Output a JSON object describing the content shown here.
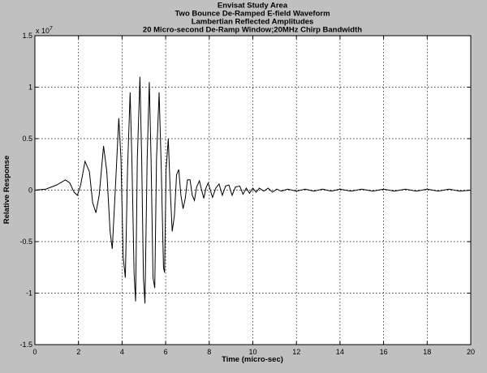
{
  "chart_data": {
    "type": "line",
    "title_lines": [
      "Envisat Study Area",
      "Two Bounce De-Ramped E-field Waveform",
      "Lambertian Reflected Amplitudes",
      "20 Micro-second De-Ramp Window;20MHz Chirp Bandwidth"
    ],
    "xlabel": "Time (micro-sec)",
    "ylabel": "Relative Response",
    "xlim": [
      0,
      20
    ],
    "ylim": [
      -1.5,
      1.5
    ],
    "y_multiplier": {
      "base": "x 10",
      "exponent": "7"
    },
    "x_ticks": [
      {
        "value": 0,
        "label": "0"
      },
      {
        "value": 2,
        "label": "2"
      },
      {
        "value": 4,
        "label": "4"
      },
      {
        "value": 6,
        "label": "6"
      },
      {
        "value": 8,
        "label": "8"
      },
      {
        "value": 10,
        "label": "10"
      },
      {
        "value": 12,
        "label": "12"
      },
      {
        "value": 14,
        "label": "14"
      },
      {
        "value": 16,
        "label": "16"
      },
      {
        "value": 18,
        "label": "18"
      },
      {
        "value": 20,
        "label": "20"
      }
    ],
    "y_ticks": [
      {
        "value": 1.5,
        "label": "1.5"
      },
      {
        "value": 1,
        "label": "1"
      },
      {
        "value": 0.5,
        "label": "0.5"
      },
      {
        "value": 0,
        "label": "0"
      },
      {
        "value": -0.5,
        "label": "-0.5"
      },
      {
        "value": -1,
        "label": "-1"
      },
      {
        "value": -1.5,
        "label": "-1.5"
      }
    ],
    "grid": true,
    "series": [
      {
        "color": "#000000",
        "points": [
          [
            0.0,
            0.0
          ],
          [
            0.5,
            0.01
          ],
          [
            1.0,
            0.05
          ],
          [
            1.4,
            0.1
          ],
          [
            1.6,
            0.07
          ],
          [
            1.8,
            -0.02
          ],
          [
            1.95,
            -0.05
          ],
          [
            2.1,
            0.05
          ],
          [
            2.3,
            0.28
          ],
          [
            2.5,
            0.18
          ],
          [
            2.65,
            -0.12
          ],
          [
            2.8,
            -0.22
          ],
          [
            2.95,
            -0.05
          ],
          [
            3.15,
            0.43
          ],
          [
            3.3,
            0.18
          ],
          [
            3.45,
            -0.4
          ],
          [
            3.55,
            -0.57
          ],
          [
            3.7,
            0.05
          ],
          [
            3.85,
            0.7
          ],
          [
            3.95,
            0.3
          ],
          [
            4.05,
            -0.65
          ],
          [
            4.15,
            -0.85
          ],
          [
            4.25,
            0.2
          ],
          [
            4.37,
            0.95
          ],
          [
            4.45,
            0.3
          ],
          [
            4.55,
            -0.8
          ],
          [
            4.62,
            -1.08
          ],
          [
            4.7,
            0.3
          ],
          [
            4.82,
            1.1
          ],
          [
            4.9,
            0.3
          ],
          [
            4.98,
            -0.85
          ],
          [
            5.05,
            -1.1
          ],
          [
            5.15,
            0.3
          ],
          [
            5.25,
            1.05
          ],
          [
            5.33,
            0.3
          ],
          [
            5.42,
            -0.85
          ],
          [
            5.5,
            -0.95
          ],
          [
            5.58,
            0.3
          ],
          [
            5.7,
            0.95
          ],
          [
            5.8,
            0.2
          ],
          [
            5.9,
            -0.75
          ],
          [
            5.95,
            -0.8
          ],
          [
            6.02,
            0.2
          ],
          [
            6.12,
            0.5
          ],
          [
            6.2,
            0.05
          ],
          [
            6.3,
            -0.4
          ],
          [
            6.4,
            -0.25
          ],
          [
            6.5,
            0.15
          ],
          [
            6.6,
            0.2
          ],
          [
            6.7,
            -0.05
          ],
          [
            6.8,
            -0.18
          ],
          [
            6.9,
            -0.08
          ],
          [
            7.0,
            0.1
          ],
          [
            7.12,
            0.1
          ],
          [
            7.22,
            -0.05
          ],
          [
            7.32,
            -0.1
          ],
          [
            7.42,
            0.03
          ],
          [
            7.55,
            0.09
          ],
          [
            7.65,
            0.0
          ],
          [
            7.75,
            -0.08
          ],
          [
            7.85,
            0.02
          ],
          [
            7.95,
            0.07
          ],
          [
            8.05,
            0.0
          ],
          [
            8.15,
            -0.07
          ],
          [
            8.3,
            0.02
          ],
          [
            8.45,
            0.06
          ],
          [
            8.6,
            -0.05
          ],
          [
            8.75,
            0.04
          ],
          [
            8.9,
            0.05
          ],
          [
            9.05,
            -0.05
          ],
          [
            9.2,
            0.03
          ],
          [
            9.4,
            0.04
          ],
          [
            9.55,
            -0.04
          ],
          [
            9.7,
            0.02
          ],
          [
            9.85,
            -0.03
          ],
          [
            10.0,
            0.02
          ],
          [
            10.15,
            -0.02
          ],
          [
            10.3,
            0.02
          ],
          [
            10.5,
            -0.01
          ],
          [
            10.7,
            0.02
          ],
          [
            10.9,
            -0.02
          ],
          [
            11.1,
            0.01
          ],
          [
            11.3,
            -0.01
          ],
          [
            11.6,
            0.01
          ],
          [
            12.0,
            -0.01
          ],
          [
            12.4,
            0.01
          ],
          [
            12.8,
            -0.01
          ],
          [
            13.2,
            0.01
          ],
          [
            13.6,
            -0.01
          ],
          [
            14.0,
            0.01
          ],
          [
            14.5,
            -0.01
          ],
          [
            15.0,
            0.01
          ],
          [
            15.5,
            -0.01
          ],
          [
            16.0,
            0.01
          ],
          [
            16.5,
            -0.01
          ],
          [
            17.0,
            0.01
          ],
          [
            17.5,
            -0.01
          ],
          [
            18.0,
            0.01
          ],
          [
            18.5,
            -0.01
          ],
          [
            19.0,
            0.01
          ],
          [
            19.5,
            -0.01
          ],
          [
            20.0,
            0.0
          ]
        ]
      }
    ]
  }
}
